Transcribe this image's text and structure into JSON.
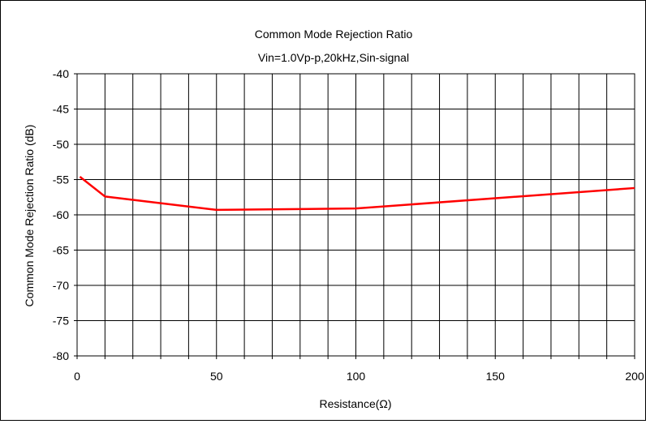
{
  "chart_data": {
    "type": "line",
    "title": "Common Mode Rejection Ratio",
    "subtitle": "Vin=1.0Vp-p,20kHz,Sin-signal",
    "xlabel": "Resistance(Ω)",
    "ylabel": "Common Mode Rejection Ratio (dB)",
    "xlim": [
      0,
      200
    ],
    "ylim": [
      -80,
      -40
    ],
    "x_ticks": [
      0,
      50,
      100,
      150,
      200
    ],
    "y_ticks": [
      -40,
      -45,
      -50,
      -55,
      -60,
      -65,
      -70,
      -75,
      -80
    ],
    "x_minor_step": 10,
    "grid": true,
    "legend": "none",
    "series": [
      {
        "color": "#ff0000",
        "x": [
          1,
          10,
          50,
          100,
          200
        ],
        "y": [
          -54.6,
          -57.4,
          -59.3,
          -59.1,
          -56.2
        ]
      }
    ]
  }
}
